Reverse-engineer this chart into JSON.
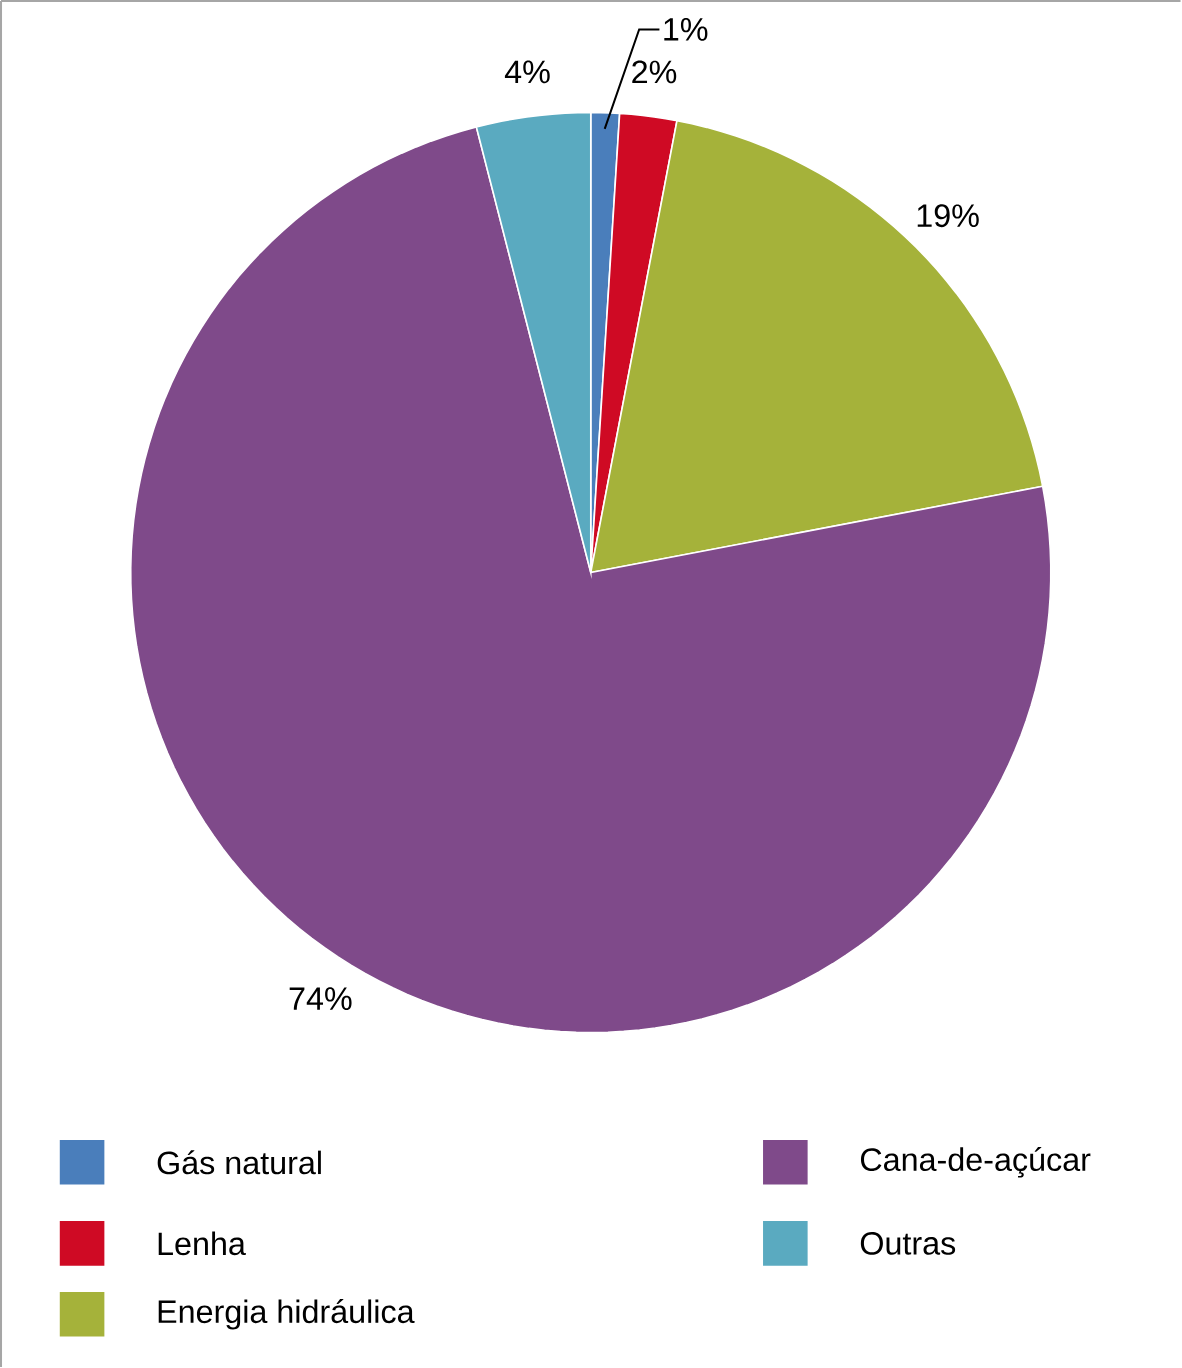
{
  "chart_data": {
    "type": "pie",
    "categories": [
      "Gás natural",
      "Lenha",
      "Energia hidráulica",
      "Cana-de-açúcar",
      "Outras"
    ],
    "values": [
      1,
      2,
      19,
      74,
      4
    ],
    "value_labels": [
      "1%",
      "2%",
      "19%",
      "74%",
      "4%"
    ],
    "colors": [
      "#4a7ebb",
      "#cf0a24",
      "#a5b23a",
      "#7f4a8a",
      "#5aaac0"
    ],
    "legend": "bottom"
  }
}
